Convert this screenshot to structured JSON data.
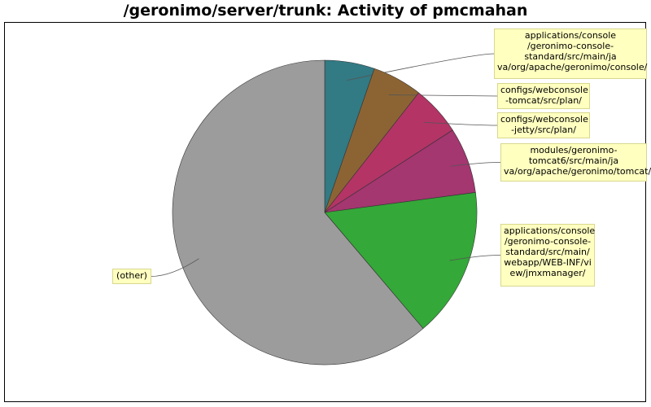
{
  "chart_data": {
    "type": "pie",
    "title": "/geronimo/server/trunk: Activity of pmcmahan",
    "start_angle_deg": 90,
    "direction": "clockwise",
    "slices": [
      {
        "label": "applications/console\n/geronimo-console-\nstandard/src/main/ja\nva/org/apache/geronimo/console/",
        "value": 5.3,
        "color": "#327a84"
      },
      {
        "label": "configs/webconsole\n-tomcat/src/plan/",
        "value": 5.3,
        "color": "#8c6434"
      },
      {
        "label": "configs/webconsole\n-jetty/src/plan/",
        "value": 5.3,
        "color": "#b43466"
      },
      {
        "label": "modules/geronimo-\ntomcat6/src/main/ja\nva/org/apache/geronimo/tomcat/",
        "value": 7.0,
        "color": "#a43670"
      },
      {
        "label": "applications/console\n/geronimo-console-\nstandard/src/main/\nwebapp/WEB-INF/vi\new/jmxmanager/",
        "value": 15.9,
        "color": "#34a838"
      },
      {
        "label": "(other)",
        "value": 61.2,
        "color": "#9c9c9c"
      }
    ]
  }
}
